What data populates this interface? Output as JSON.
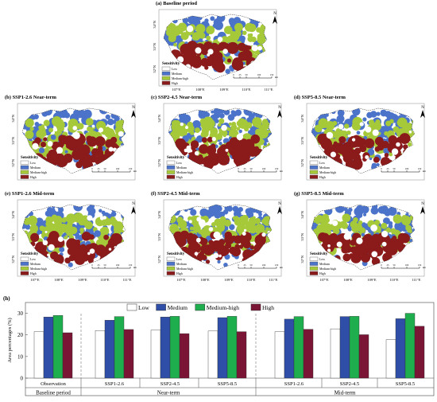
{
  "colors": {
    "low": "#ffffff",
    "medium": "#4a73c9",
    "medium_high": "#a6c93a",
    "high": "#8b1a1a",
    "bar_low": "#ffffff",
    "bar_medium": "#2e4ea8",
    "bar_medium_high": "#1fae4e",
    "bar_high": "#7b1535"
  },
  "maps": [
    {
      "id": "a",
      "title": "(a) Baseline period"
    },
    {
      "id": "b",
      "title": "(b) SSP1-2.6  Near-term"
    },
    {
      "id": "c",
      "title": "(c) SSP2-4.5  Near-term"
    },
    {
      "id": "d",
      "title": "(d) SSP5-8.5  Near-term"
    },
    {
      "id": "e",
      "title": "(e) SSP1-2.6  Mid-term"
    },
    {
      "id": "f",
      "title": "(f) SSP2-4.5  Mid-term"
    },
    {
      "id": "g",
      "title": "(g) SSP5-8.5  Mid-term"
    }
  ],
  "map_legend": {
    "title": "Sensitivity",
    "items": [
      "Low",
      "Medium",
      "Medium-high",
      "High"
    ]
  },
  "map_axes": {
    "lat_ticks": [
      "34°N",
      "33°N",
      "32°N"
    ],
    "lon_ticks": [
      "107°E",
      "108°E",
      "109°E",
      "110°E",
      "111°E"
    ],
    "north": "N",
    "scale_values": [
      "0",
      "25",
      "50",
      "100",
      "150"
    ],
    "scale_unit": "km"
  },
  "chart_data": {
    "type": "bar",
    "title": "(h)",
    "ylabel": "Area percentages (%)",
    "ylim": [
      0,
      35
    ],
    "yticks": [
      0,
      10,
      20,
      30
    ],
    "legend": [
      "Low",
      "Medium",
      "Medium-high",
      "High"
    ],
    "legend_position": "top",
    "categories": [
      "Observation",
      "SSP1-2.6",
      "SSP2-4.5",
      "SSP5-8.5",
      "SSP1-2.6",
      "SSP2-4.5",
      "SSP5-8.5"
    ],
    "groups": [
      {
        "label": "Baseline period",
        "span": 1
      },
      {
        "label": "Near-term",
        "span": 3
      },
      {
        "label": "Mid-term",
        "span": 3
      }
    ],
    "series": [
      {
        "name": "Low",
        "values": [
          21.5,
          22.0,
          22.2,
          21.8,
          21.5,
          22.8,
          17.8
        ]
      },
      {
        "name": "Medium",
        "values": [
          28.3,
          26.8,
          28.3,
          28.0,
          27.3,
          28.5,
          27.5
        ]
      },
      {
        "name": "Medium-high",
        "values": [
          29.0,
          28.5,
          28.6,
          28.6,
          28.5,
          28.6,
          30.0
        ]
      },
      {
        "name": "High",
        "values": [
          21.0,
          22.5,
          20.6,
          21.5,
          22.6,
          20.1,
          24.0
        ]
      }
    ]
  }
}
